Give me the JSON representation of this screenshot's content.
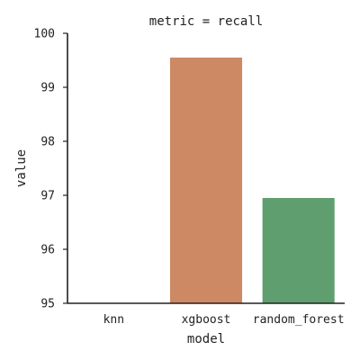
{
  "chart_data": {
    "type": "bar",
    "title": "metric = recall",
    "xlabel": "model",
    "ylabel": "value",
    "categories": [
      "knn",
      "xgboost",
      "random_forest"
    ],
    "values": [
      95.0,
      99.55,
      96.95
    ],
    "ylim": [
      95,
      100
    ],
    "yticks": [
      "95",
      "96",
      "97",
      "98",
      "99",
      "100"
    ],
    "grid": false,
    "legend": "none",
    "colors": [
      "#4c72b0",
      "#cc8963",
      "#5f9e6e"
    ]
  }
}
